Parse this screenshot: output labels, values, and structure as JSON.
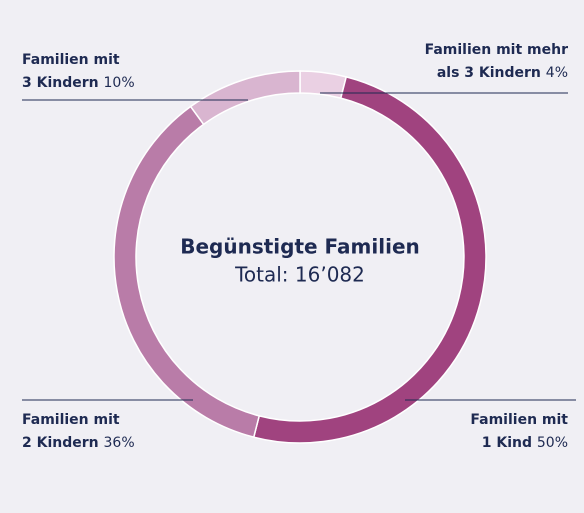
{
  "chart_data": {
    "type": "pie",
    "donut": true,
    "title": "Begünstigte Familien",
    "subtitle": "Total: 16’082",
    "categories": [
      [
        "Familien mit mehr",
        "als 3 Kindern"
      ],
      [
        "Familien mit",
        "1 Kind"
      ],
      [
        "Familien mit",
        "2 Kindern"
      ],
      [
        "Familien mit",
        "3 Kindern"
      ]
    ],
    "values": [
      4,
      50,
      36,
      10
    ],
    "value_labels": [
      "4%",
      "50%",
      "36%",
      "10%"
    ],
    "colors": [
      "#ead0e3",
      "#a0437f",
      "#b97ca8",
      "#d9b5d0"
    ]
  }
}
